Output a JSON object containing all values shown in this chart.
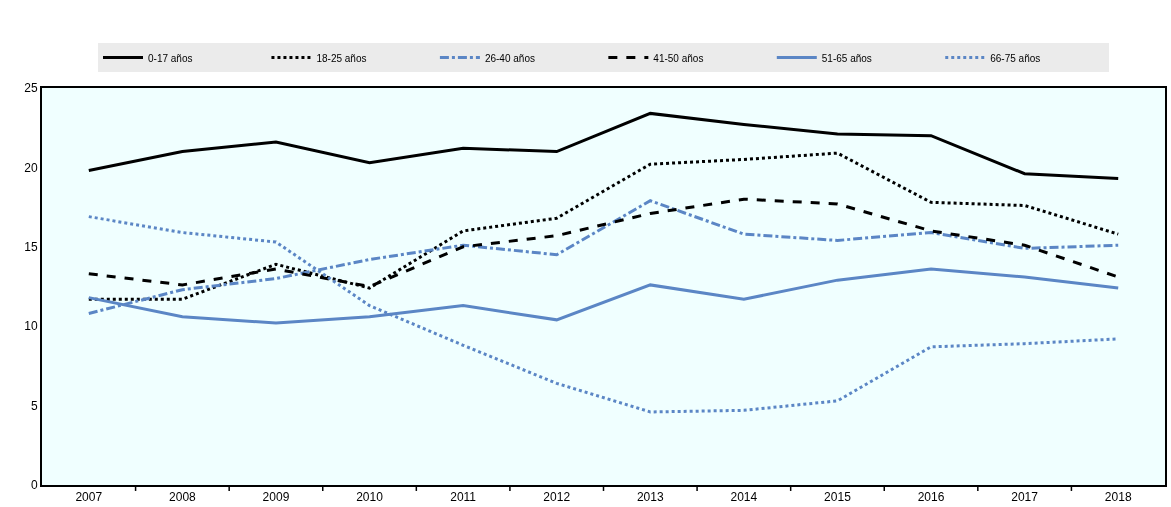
{
  "chart_data": {
    "type": "line",
    "categories": [
      "2007",
      "2008",
      "2009",
      "2010",
      "2011",
      "2012",
      "2013",
      "2014",
      "2015",
      "2016",
      "2017",
      "2018"
    ],
    "series": [
      {
        "name": "0-17 años",
        "color": "#000000",
        "line_style": "solid",
        "values": [
          19.8,
          21.0,
          21.6,
          20.3,
          21.2,
          21.0,
          23.4,
          22.7,
          22.1,
          22.0,
          19.6,
          19.3
        ]
      },
      {
        "name": "18-25 años",
        "color": "#000000",
        "line_style": "dotted",
        "values": [
          11.7,
          11.7,
          13.9,
          12.4,
          16.0,
          16.8,
          20.2,
          20.5,
          20.9,
          17.8,
          17.6,
          15.8
        ]
      },
      {
        "name": "26-40 años",
        "color": "#5b86c5",
        "line_style": "dashdot",
        "values": [
          10.8,
          12.3,
          13.0,
          14.2,
          15.1,
          14.5,
          17.9,
          15.8,
          15.4,
          15.9,
          14.9,
          15.1
        ]
      },
      {
        "name": "41-50 años",
        "color": "#000000",
        "line_style": "dashed",
        "values": [
          13.3,
          12.6,
          13.6,
          12.5,
          15.0,
          15.7,
          17.1,
          18.0,
          17.7,
          16.0,
          15.1,
          13.1
        ]
      },
      {
        "name": "51-65 años",
        "color": "#5b86c5",
        "line_style": "solid",
        "values": [
          11.8,
          10.6,
          10.2,
          10.6,
          11.3,
          10.4,
          12.6,
          11.7,
          12.9,
          13.6,
          13.1,
          12.4
        ]
      },
      {
        "name": "66-75 años",
        "color": "#5b86c5",
        "line_style": "dotted",
        "values": [
          16.9,
          15.9,
          15.3,
          11.3,
          8.8,
          6.4,
          4.6,
          4.7,
          5.3,
          8.7,
          8.9,
          9.2
        ]
      }
    ],
    "ylim": [
      0,
      25
    ],
    "yticks": [
      0,
      5,
      10,
      15,
      20,
      25
    ],
    "grid": false,
    "legend": "top",
    "marker": "none"
  }
}
